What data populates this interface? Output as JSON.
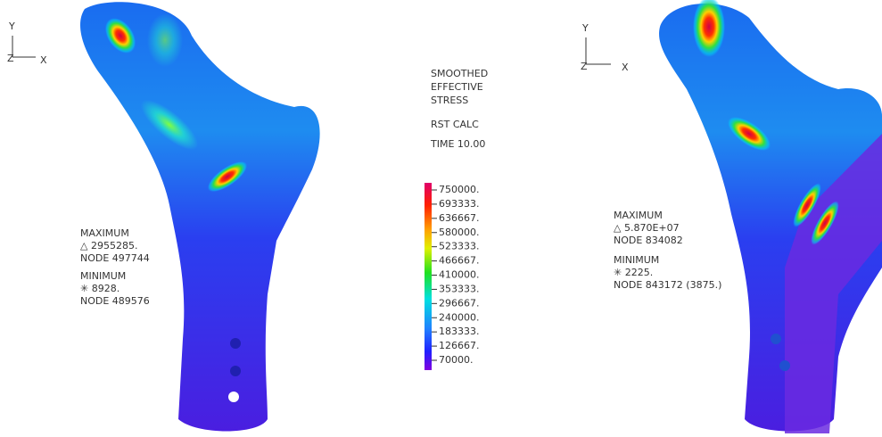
{
  "left_panel": {
    "axes": {
      "y": "Y",
      "z": "Z",
      "x": "X"
    },
    "info": [
      "MAXIMUM",
      "△ 2955285.",
      "NODE 497744",
      "MINIMUM",
      "✳ 8928.",
      "NODE 489576"
    ]
  },
  "legend": {
    "title": [
      "SMOOTHED",
      "EFFECTIVE",
      "STRESS"
    ],
    "calc": "RST CALC",
    "time": "TIME 10.00",
    "levels": [
      "750000.",
      "693333.",
      "636667.",
      "580000.",
      "523333.",
      "466667.",
      "410000.",
      "353333.",
      "296667.",
      "240000.",
      "183333.",
      "126667.",
      "70000."
    ]
  },
  "right_panel": {
    "axes": {
      "y": "Y",
      "z": "Z",
      "x": "X"
    },
    "info": [
      "MAXIMUM",
      "△ 5.870E+07",
      "NODE 834082",
      "MINIMUM",
      "✳ 2225.",
      "NODE 843172 (3875.)"
    ]
  }
}
